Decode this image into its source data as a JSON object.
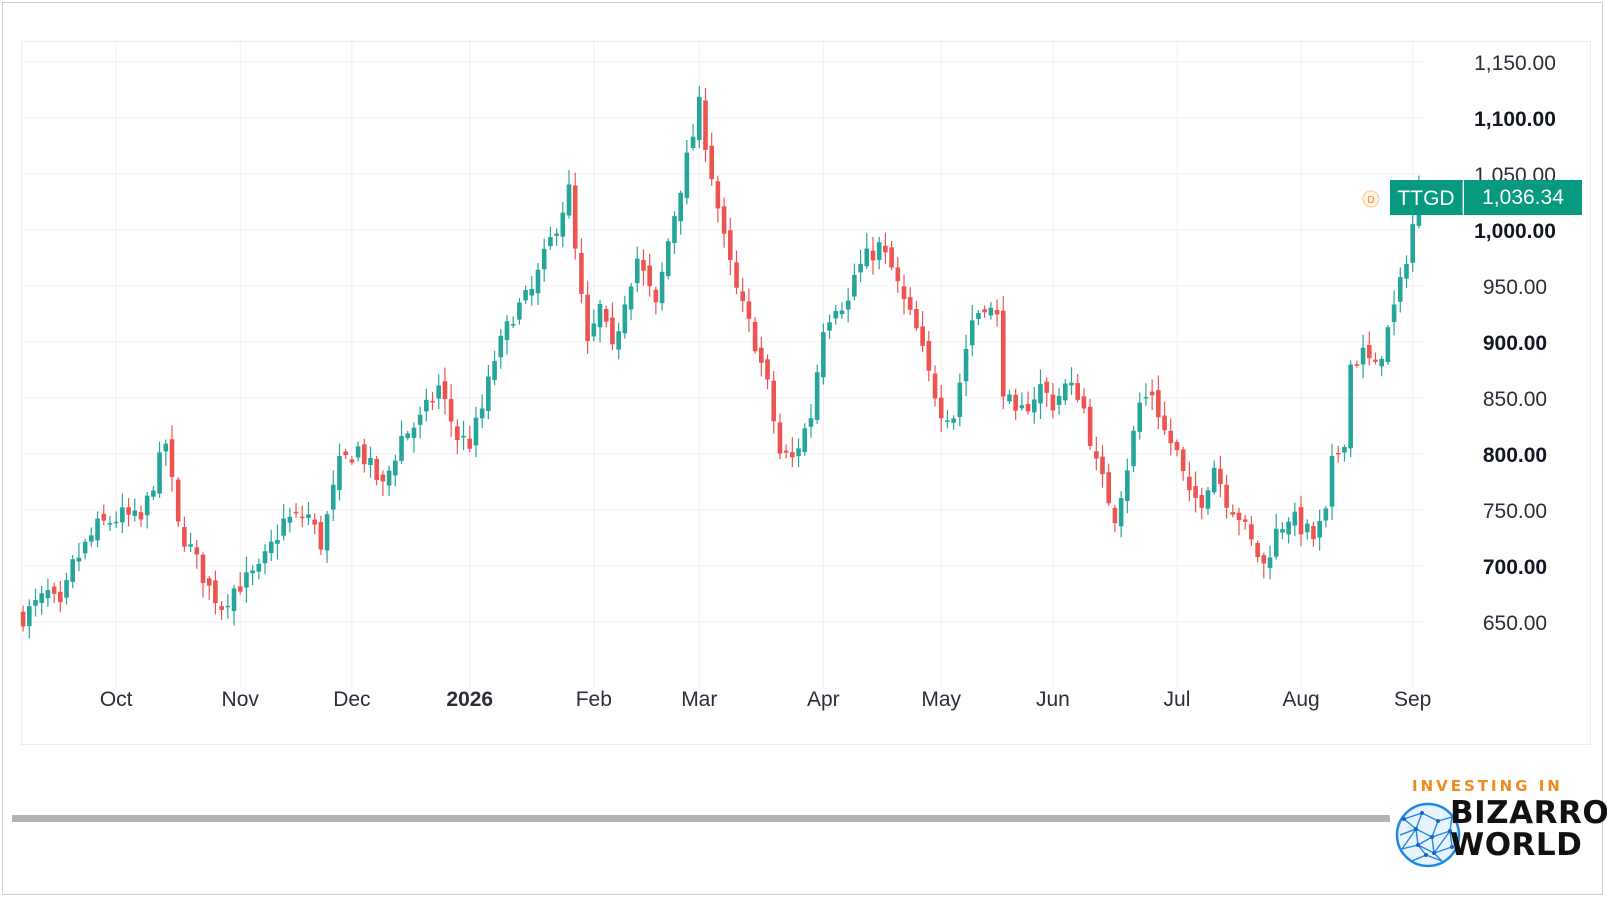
{
  "chart_data": {
    "type": "candlestick",
    "symbol": "TTGD",
    "last_price": "1,036.34",
    "interval_badge": "D",
    "ylim": [
      620,
      1170
    ],
    "y_ticks": [
      {
        "value": 650,
        "label": "650.00",
        "bold": false
      },
      {
        "value": 700,
        "label": "700.00",
        "bold": true
      },
      {
        "value": 750,
        "label": "750.00",
        "bold": false
      },
      {
        "value": 800,
        "label": "800.00",
        "bold": true
      },
      {
        "value": 850,
        "label": "850.00",
        "bold": false
      },
      {
        "value": 900,
        "label": "900.00",
        "bold": true
      },
      {
        "value": 950,
        "label": "950.00",
        "bold": false
      },
      {
        "value": 1000,
        "label": "1,000.00",
        "bold": true
      },
      {
        "value": 1050,
        "label": "1,050.00",
        "bold": false
      },
      {
        "value": 1100,
        "label": "1,100.00",
        "bold": true
      },
      {
        "value": 1150,
        "label": "1,150.00",
        "bold": false
      }
    ],
    "x_ticks": [
      {
        "index": 15,
        "label": "Oct",
        "bold": false
      },
      {
        "index": 35,
        "label": "Nov",
        "bold": false
      },
      {
        "index": 53,
        "label": "Dec",
        "bold": false
      },
      {
        "index": 72,
        "label": "2026",
        "bold": true
      },
      {
        "index": 92,
        "label": "Feb",
        "bold": false
      },
      {
        "index": 109,
        "label": "Mar",
        "bold": false
      },
      {
        "index": 129,
        "label": "Apr",
        "bold": false
      },
      {
        "index": 148,
        "label": "May",
        "bold": false
      },
      {
        "index": 166,
        "label": "Jun",
        "bold": false
      },
      {
        "index": 186,
        "label": "Jul",
        "bold": false
      },
      {
        "index": 206,
        "label": "Aug",
        "bold": false
      },
      {
        "index": 224,
        "label": "Sep",
        "bold": false
      }
    ],
    "total_slots": 226,
    "colors": {
      "up": "#26a69a",
      "down": "#ef5350",
      "badge": "#089981",
      "grid": "#f0f0f0"
    },
    "anchors": [
      [
        0,
        655
      ],
      [
        4,
        675
      ],
      [
        6,
        660
      ],
      [
        8,
        700
      ],
      [
        12,
        735
      ],
      [
        16,
        745
      ],
      [
        19,
        740
      ],
      [
        23,
        810
      ],
      [
        25,
        735
      ],
      [
        27,
        715
      ],
      [
        30,
        680
      ],
      [
        32,
        665
      ],
      [
        34,
        680
      ],
      [
        38,
        695
      ],
      [
        42,
        740
      ],
      [
        46,
        745
      ],
      [
        48,
        720
      ],
      [
        51,
        790
      ],
      [
        54,
        805
      ],
      [
        58,
        770
      ],
      [
        61,
        815
      ],
      [
        64,
        830
      ],
      [
        67,
        860
      ],
      [
        70,
        815
      ],
      [
        72,
        810
      ],
      [
        74,
        840
      ],
      [
        76,
        885
      ],
      [
        79,
        925
      ],
      [
        82,
        945
      ],
      [
        85,
        990
      ],
      [
        88,
        1035
      ],
      [
        89,
        980
      ],
      [
        91,
        895
      ],
      [
        93,
        930
      ],
      [
        95,
        890
      ],
      [
        97,
        940
      ],
      [
        99,
        975
      ],
      [
        102,
        930
      ],
      [
        104,
        990
      ],
      [
        106,
        1040
      ],
      [
        108,
        1085
      ],
      [
        109,
        1110
      ],
      [
        111,
        1050
      ],
      [
        113,
        990
      ],
      [
        115,
        945
      ],
      [
        118,
        900
      ],
      [
        120,
        860
      ],
      [
        122,
        800
      ],
      [
        124,
        795
      ],
      [
        127,
        835
      ],
      [
        129,
        915
      ],
      [
        131,
        935
      ],
      [
        133,
        935
      ],
      [
        134,
        960
      ],
      [
        136,
        975
      ],
      [
        138,
        985
      ],
      [
        140,
        965
      ],
      [
        142,
        935
      ],
      [
        144,
        910
      ],
      [
        146,
        870
      ],
      [
        148,
        840
      ],
      [
        150,
        835
      ],
      [
        152,
        895
      ],
      [
        153,
        920
      ],
      [
        155,
        935
      ],
      [
        157,
        920
      ],
      [
        158,
        860
      ],
      [
        160,
        830
      ],
      [
        162,
        845
      ],
      [
        164,
        860
      ],
      [
        166,
        845
      ],
      [
        168,
        860
      ],
      [
        170,
        855
      ],
      [
        171,
        840
      ],
      [
        173,
        790
      ],
      [
        175,
        760
      ],
      [
        176,
        745
      ],
      [
        178,
        790
      ],
      [
        180,
        845
      ],
      [
        182,
        855
      ],
      [
        184,
        820
      ],
      [
        186,
        800
      ],
      [
        188,
        760
      ],
      [
        190,
        760
      ],
      [
        192,
        790
      ],
      [
        194,
        760
      ],
      [
        196,
        745
      ],
      [
        198,
        720
      ],
      [
        200,
        700
      ],
      [
        202,
        730
      ],
      [
        204,
        745
      ],
      [
        206,
        735
      ],
      [
        208,
        725
      ],
      [
        210,
        745
      ],
      [
        211,
        790
      ],
      [
        213,
        815
      ],
      [
        214,
        880
      ],
      [
        216,
        890
      ],
      [
        218,
        875
      ],
      [
        220,
        910
      ],
      [
        222,
        950
      ],
      [
        224,
        1005
      ],
      [
        225,
        1036.34
      ]
    ]
  },
  "branding": {
    "top_text": "INVESTING IN",
    "word1": "BIZARRO",
    "word2": "WORLD"
  }
}
